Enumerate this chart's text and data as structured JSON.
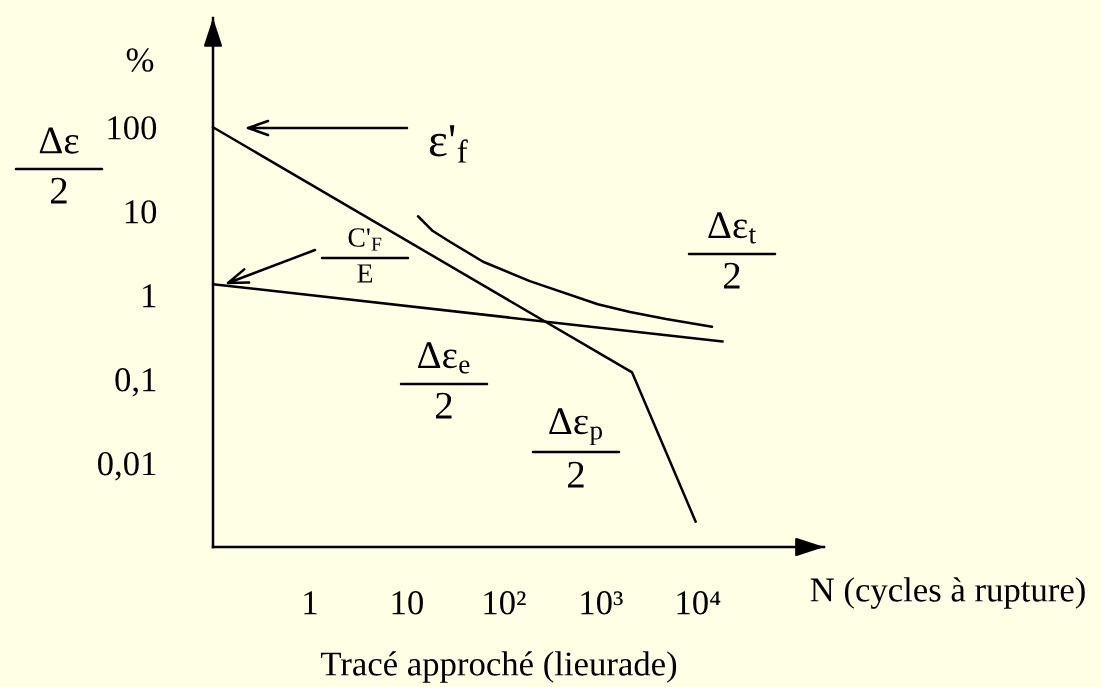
{
  "chart_data": {
    "type": "line",
    "log": "xy",
    "marker": "none",
    "line_style": "solid",
    "xlim": [
      0.1,
      200000
    ],
    "ylim": [
      0.001,
      2000
    ],
    "xticks": [
      1,
      10,
      {
        "value": 100,
        "label": "10²"
      },
      {
        "value": 1000,
        "label": "10³"
      },
      {
        "value": 10000,
        "label": "10⁴"
      }
    ],
    "yticks": [
      {
        "value": 0.01,
        "label": "0,01"
      },
      {
        "value": 0.1,
        "label": "0,1"
      },
      1,
      10,
      100
    ],
    "xlabel": "N (cycles à rupture)",
    "ylabel": "Δε\n2",
    "series": [
      {
        "color": "#000000",
        "x": [
          13,
          18.5,
          28,
          61,
          185,
          930,
          2000,
          4700,
          14000
        ],
        "values": [
          8.7,
          5.8,
          4.3,
          2.5,
          1.47,
          0.78,
          0.63,
          0.52,
          0.42
        ]
      },
      {
        "color": "#000000",
        "x": [
          0.1,
          18000
        ],
        "values": [
          1.35,
          0.28
        ]
      },
      {
        "color": "#000000",
        "x": [
          0.1,
          2100,
          9500
        ],
        "values": [
          100,
          0.12,
          0.002
        ]
      }
    ],
    "annotations": [
      "%",
      "ε'$_{f}$",
      "C'$_{F}$\nE",
      "Δε$_{t}$\n2",
      "Δε$_{e}$\n2",
      "Δε$_{p}$\n2",
      "Tracé approché (lieurade)"
    ]
  }
}
